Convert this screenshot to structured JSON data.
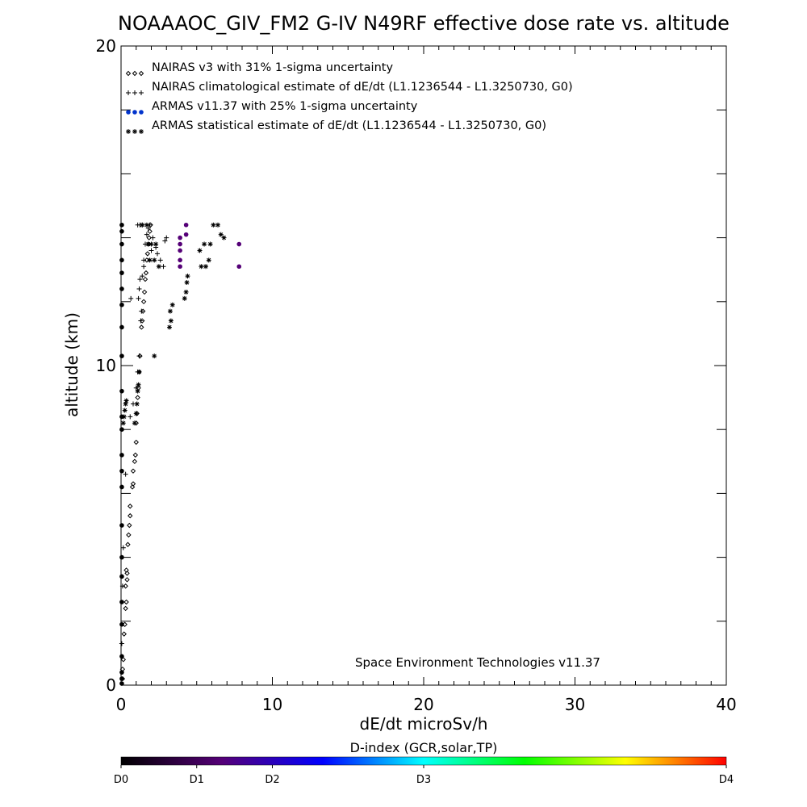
{
  "chart_data": {
    "type": "scatter",
    "title": "NOAAAOC_GIV_FM2 G-IV   N49RF  effective dose rate vs. altitude",
    "xlabel": "dE/dt microSv/h",
    "ylabel": "altitude (km)",
    "xlim": [
      0,
      40
    ],
    "ylim": [
      0,
      20
    ],
    "x_ticks": [
      0,
      10,
      20,
      30,
      40
    ],
    "y_ticks": [
      0,
      10,
      20
    ],
    "grid": false,
    "legend_placement": "top-left",
    "credit": "Space Environment Technologies v11.37",
    "series": [
      {
        "name": "NAIRAS v3 with 31% 1-sigma uncertainty",
        "marker": "diamond",
        "color": "#000000",
        "points": [
          [
            0.1,
            0.2
          ],
          [
            0.1,
            0.5
          ],
          [
            0.15,
            0.8
          ],
          [
            0.2,
            1.6
          ],
          [
            0.25,
            1.9
          ],
          [
            0.3,
            2.4
          ],
          [
            0.35,
            2.6
          ],
          [
            0.3,
            3.1
          ],
          [
            0.4,
            3.3
          ],
          [
            0.4,
            3.5
          ],
          [
            0.35,
            3.6
          ],
          [
            0.45,
            4.4
          ],
          [
            0.5,
            4.7
          ],
          [
            0.55,
            5.0
          ],
          [
            0.6,
            5.3
          ],
          [
            0.6,
            5.6
          ],
          [
            0.75,
            6.2
          ],
          [
            0.8,
            6.3
          ],
          [
            0.8,
            6.7
          ],
          [
            0.9,
            7.0
          ],
          [
            0.95,
            7.2
          ],
          [
            1.0,
            7.6
          ],
          [
            1.0,
            8.2
          ],
          [
            1.05,
            8.5
          ],
          [
            1.1,
            9.0
          ],
          [
            1.15,
            9.3
          ],
          [
            1.2,
            9.8
          ],
          [
            1.25,
            10.3
          ],
          [
            1.35,
            11.2
          ],
          [
            1.4,
            11.4
          ],
          [
            1.45,
            11.7
          ],
          [
            1.5,
            12.0
          ],
          [
            1.55,
            12.3
          ],
          [
            1.6,
            12.7
          ],
          [
            1.65,
            12.9
          ],
          [
            1.7,
            13.3
          ],
          [
            1.75,
            13.5
          ],
          [
            1.8,
            13.8
          ],
          [
            1.85,
            14.0
          ],
          [
            1.9,
            14.2
          ],
          [
            1.95,
            14.4
          ]
        ]
      },
      {
        "name": "NAIRAS climatological estimate of dE/dt (L1.1236544 - L1.3250730, G0)",
        "marker": "plus",
        "color": "#000000",
        "points": [
          [
            0.05,
            1.3
          ],
          [
            0.1,
            3.1
          ],
          [
            0.15,
            4.3
          ],
          [
            0.3,
            6.6
          ],
          [
            0.6,
            8.4
          ],
          [
            0.8,
            8.8
          ],
          [
            1.0,
            9.3
          ],
          [
            1.1,
            9.8
          ],
          [
            1.2,
            10.3
          ],
          [
            0.65,
            12.1
          ],
          [
            1.15,
            12.1
          ],
          [
            1.2,
            12.4
          ],
          [
            1.25,
            12.7
          ],
          [
            1.3,
            11.4
          ],
          [
            1.35,
            11.7
          ],
          [
            1.4,
            12.8
          ],
          [
            1.5,
            13.1
          ],
          [
            1.5,
            13.3
          ],
          [
            1.6,
            13.8
          ],
          [
            1.7,
            14.1
          ],
          [
            1.8,
            14.3
          ],
          [
            1.9,
            14.4
          ],
          [
            2.1,
            14.0
          ],
          [
            2.3,
            13.7
          ],
          [
            2.6,
            13.3
          ],
          [
            2.8,
            13.1
          ],
          [
            3.0,
            14.0
          ],
          [
            2.9,
            13.9
          ],
          [
            1.1,
            14.4
          ],
          [
            1.25,
            14.4
          ],
          [
            1.4,
            14.4
          ],
          [
            2.0,
            13.6
          ],
          [
            2.4,
            13.5
          ]
        ]
      },
      {
        "name": "ARMAS v11.37 with 25% 1-sigma uncertainty",
        "marker": "filled-circle",
        "color": "#0033cc",
        "points": [
          [
            0.05,
            0.05
          ],
          [
            0.05,
            0.2
          ],
          [
            0.05,
            0.4
          ],
          [
            0.05,
            0.9
          ],
          [
            0.05,
            1.9
          ],
          [
            0.05,
            2.6
          ],
          [
            0.05,
            3.4
          ],
          [
            0.05,
            4.0
          ],
          [
            0.05,
            5.0
          ],
          [
            0.05,
            6.2
          ],
          [
            0.05,
            6.7
          ],
          [
            0.05,
            7.2
          ],
          [
            0.05,
            8.0
          ],
          [
            0.05,
            8.4
          ],
          [
            0.05,
            9.2
          ],
          [
            0.05,
            10.3
          ],
          [
            0.05,
            11.2
          ],
          [
            0.05,
            11.9
          ],
          [
            0.05,
            12.4
          ],
          [
            0.05,
            12.9
          ],
          [
            0.05,
            13.3
          ],
          [
            0.05,
            13.8
          ],
          [
            0.05,
            14.2
          ],
          [
            0.05,
            14.4
          ],
          [
            3.9,
            13.1
          ],
          [
            3.9,
            13.3
          ],
          [
            3.9,
            13.6
          ],
          [
            3.9,
            13.8
          ],
          [
            3.9,
            14.0
          ],
          [
            4.3,
            14.1
          ],
          [
            4.3,
            14.4
          ],
          [
            7.8,
            13.8
          ],
          [
            7.8,
            13.1
          ]
        ]
      },
      {
        "name": "ARMAS statistical estimate of dE/dt (L1.1236544 - L1.3250730, G0)",
        "marker": "asterisk",
        "color": "#000000",
        "points": [
          [
            0.15,
            8.2
          ],
          [
            0.2,
            8.4
          ],
          [
            0.25,
            8.6
          ],
          [
            0.3,
            8.8
          ],
          [
            0.35,
            8.9
          ],
          [
            0.9,
            8.2
          ],
          [
            1.0,
            8.5
          ],
          [
            1.05,
            8.8
          ],
          [
            1.1,
            9.2
          ],
          [
            1.15,
            9.4
          ],
          [
            1.2,
            9.8
          ],
          [
            2.2,
            10.3
          ],
          [
            3.2,
            11.2
          ],
          [
            3.3,
            11.4
          ],
          [
            3.25,
            11.7
          ],
          [
            3.4,
            11.9
          ],
          [
            4.2,
            12.1
          ],
          [
            4.3,
            12.3
          ],
          [
            4.35,
            12.6
          ],
          [
            4.4,
            12.8
          ],
          [
            5.3,
            13.1
          ],
          [
            5.6,
            13.1
          ],
          [
            5.8,
            13.3
          ],
          [
            5.2,
            13.6
          ],
          [
            5.5,
            13.8
          ],
          [
            5.9,
            13.8
          ],
          [
            6.1,
            14.4
          ],
          [
            6.4,
            14.4
          ],
          [
            6.6,
            14.1
          ],
          [
            6.8,
            14.0
          ],
          [
            1.9,
            13.3
          ],
          [
            2.2,
            13.3
          ],
          [
            2.5,
            13.1
          ],
          [
            1.8,
            13.8
          ],
          [
            2.0,
            13.8
          ],
          [
            2.3,
            13.8
          ],
          [
            1.4,
            14.4
          ],
          [
            1.7,
            14.4
          ]
        ]
      }
    ],
    "colorbar": {
      "title": "D-index (GCR,solar,TP)",
      "tick_labels": [
        {
          "label": "D0",
          "position": 0.0
        },
        {
          "label": "D1",
          "position": 0.125
        },
        {
          "label": "D2",
          "position": 0.25
        },
        {
          "label": "D3",
          "position": 0.5
        },
        {
          "label": "D4",
          "position": 1.0
        }
      ],
      "gradient": [
        "#000000",
        "#550077",
        "#0000ff",
        "#00ffff",
        "#00ff00",
        "#ffff00",
        "#ff0000"
      ]
    }
  }
}
